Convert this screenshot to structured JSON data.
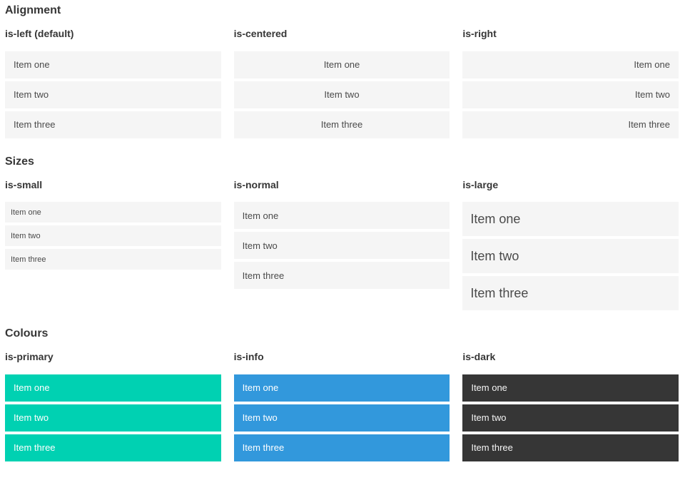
{
  "palette": {
    "primary": "#00d1b2",
    "info": "#3298dc",
    "dark": "#363636",
    "item_background": "#f5f5f5",
    "item_text": "#4a4a4a",
    "heading_text": "#363636"
  },
  "sections": [
    {
      "heading": "Alignment",
      "columns": [
        {
          "label": "is-left (default)",
          "modifier": "align-left",
          "items": [
            "Item one",
            "Item two",
            "Item three"
          ]
        },
        {
          "label": "is-centered",
          "modifier": "align-center",
          "items": [
            "Item one",
            "Item two",
            "Item three"
          ]
        },
        {
          "label": "is-right",
          "modifier": "align-right",
          "items": [
            "Item one",
            "Item two",
            "Item three"
          ]
        }
      ]
    },
    {
      "heading": "Sizes",
      "columns": [
        {
          "label": "is-small",
          "modifier": "size-small",
          "items": [
            "Item one",
            "Item two",
            "Item three"
          ]
        },
        {
          "label": "is-normal",
          "modifier": "size-normal",
          "items": [
            "Item one",
            "Item two",
            "Item three"
          ]
        },
        {
          "label": "is-large",
          "modifier": "size-large",
          "items": [
            "Item one",
            "Item two",
            "Item three"
          ]
        }
      ]
    },
    {
      "heading": "Colours",
      "columns": [
        {
          "label": "is-primary",
          "modifier": "color-primary",
          "items": [
            "Item one",
            "Item two",
            "Item three"
          ]
        },
        {
          "label": "is-info",
          "modifier": "color-info",
          "items": [
            "Item one",
            "Item two",
            "Item three"
          ]
        },
        {
          "label": "is-dark",
          "modifier": "color-dark",
          "items": [
            "Item one",
            "Item two",
            "Item three"
          ]
        }
      ]
    }
  ]
}
